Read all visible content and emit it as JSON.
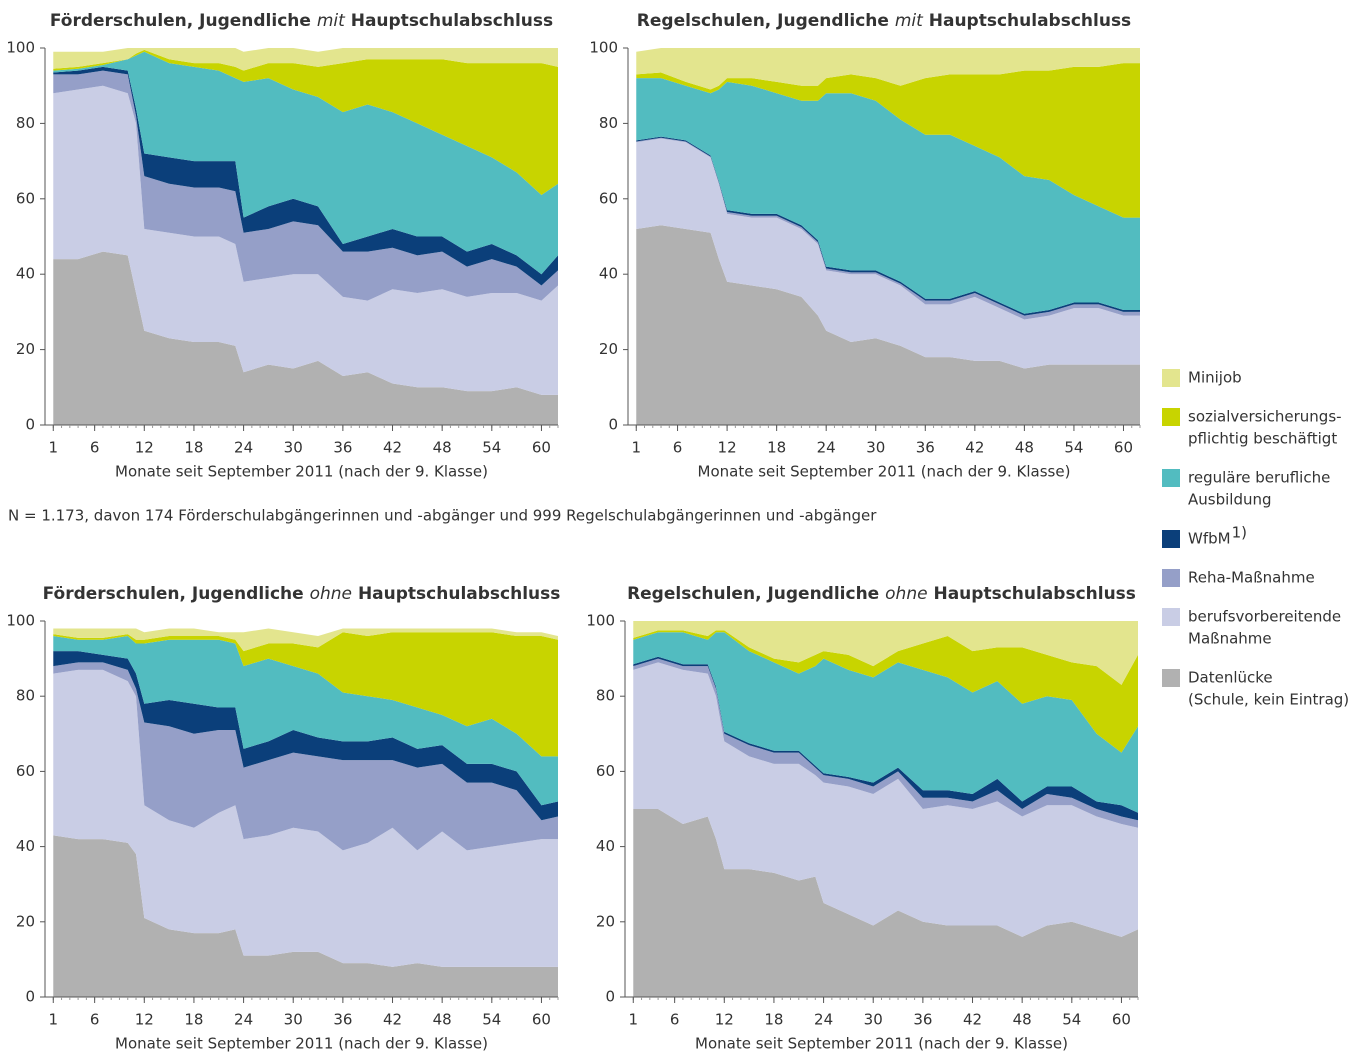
{
  "chart_data": [
    {
      "type": "area",
      "title": [
        "Förderschulen, Jugendliche ",
        "mit",
        " Hauptschulabschluss"
      ],
      "x_label": "Monate seit September 2011 (nach der 9. Klasse)",
      "x": [
        1,
        4,
        7,
        10,
        11,
        12,
        15,
        18,
        21,
        23,
        24,
        27,
        30,
        33,
        36,
        39,
        42,
        45,
        48,
        51,
        54,
        57,
        60,
        62
      ],
      "xlim": [
        0,
        62
      ],
      "xticks": [
        1,
        6,
        12,
        18,
        24,
        30,
        36,
        42,
        48,
        54,
        60
      ],
      "ylim": [
        0,
        100
      ],
      "yticks": [
        0,
        20,
        40,
        60,
        80,
        100
      ],
      "series": [
        {
          "values": [
            44,
            44,
            46,
            45,
            35,
            25,
            23,
            22,
            22,
            21,
            14,
            16,
            15,
            17,
            13,
            14,
            11,
            10,
            10,
            9,
            9,
            10,
            8,
            8
          ]
        },
        {
          "values": [
            44,
            45,
            44,
            43,
            45,
            27,
            28,
            28,
            28,
            27,
            24,
            23,
            25,
            23,
            21,
            19,
            25,
            25,
            26,
            25,
            26,
            25,
            25,
            29
          ]
        },
        {
          "values": [
            5,
            4,
            4,
            5,
            2,
            14,
            13,
            13,
            13,
            14,
            13,
            13,
            14,
            13,
            12,
            13,
            11,
            10,
            10,
            8,
            9,
            7,
            4,
            4
          ]
        },
        {
          "values": [
            0.5,
            1,
            1,
            1,
            2,
            6,
            7,
            7,
            7,
            8,
            4,
            6,
            6,
            5,
            2,
            4,
            5,
            5,
            4,
            4,
            4,
            3,
            3,
            4
          ]
        },
        {
          "values": [
            0.5,
            0.5,
            0.5,
            3,
            14,
            27,
            25,
            25,
            24,
            22,
            36,
            34,
            29,
            29,
            35,
            35,
            31,
            30,
            27,
            28,
            23,
            22,
            21,
            19
          ]
        },
        {
          "values": [
            0.5,
            0.5,
            0.5,
            0,
            0.5,
            0.5,
            1,
            1,
            2,
            3,
            3,
            4,
            7,
            8,
            13,
            12,
            14,
            17,
            20,
            22,
            25,
            29,
            35,
            31
          ]
        },
        {
          "values": [
            4.5,
            4,
            3,
            3,
            1.5,
            0.5,
            3,
            4,
            4,
            5,
            5,
            4,
            4,
            4,
            4,
            3,
            3,
            3,
            3,
            4,
            4,
            4,
            4,
            5
          ]
        }
      ]
    },
    {
      "type": "area",
      "title": [
        "Regelschulen, Jugendliche ",
        "mit",
        " Hauptschulabschluss"
      ],
      "x_label": "Monate seit September 2011 (nach der 9. Klasse)",
      "x": [
        1,
        4,
        7,
        10,
        11,
        12,
        15,
        18,
        21,
        23,
        24,
        27,
        30,
        33,
        36,
        39,
        42,
        45,
        48,
        51,
        54,
        57,
        60,
        62
      ],
      "xlim": [
        0,
        62
      ],
      "xticks": [
        1,
        6,
        12,
        18,
        24,
        30,
        36,
        42,
        48,
        54,
        60
      ],
      "ylim": [
        0,
        100
      ],
      "yticks": [
        0,
        20,
        40,
        60,
        80,
        100
      ],
      "series": [
        {
          "values": [
            52,
            53,
            52,
            51,
            44,
            38,
            37,
            36,
            34,
            29,
            25,
            22,
            23,
            21,
            18,
            18,
            17,
            17,
            15,
            16,
            16,
            16,
            16,
            16
          ]
        },
        {
          "values": [
            23,
            23,
            23,
            20,
            20,
            18,
            18,
            19,
            18,
            19,
            16,
            18,
            17,
            16,
            14,
            14,
            17,
            14,
            13,
            13,
            15,
            15,
            13,
            13
          ]
        },
        {
          "values": [
            0.2,
            0.2,
            0.2,
            0.2,
            0.3,
            0.5,
            0.5,
            0.5,
            0.5,
            0.5,
            0.5,
            0.5,
            0.5,
            0.5,
            1,
            1,
            1,
            1,
            1,
            1,
            1,
            1,
            1,
            1
          ]
        },
        {
          "values": [
            0.3,
            0.3,
            0.3,
            0.3,
            0.3,
            0.5,
            0.5,
            0.5,
            0.5,
            0.5,
            0.5,
            0.5,
            0.5,
            0.5,
            0.5,
            0.5,
            0.5,
            0.5,
            0.5,
            0.5,
            0.5,
            0.5,
            0.5,
            0.5
          ]
        },
        {
          "values": [
            16.5,
            15.5,
            14.5,
            16.5,
            24.4,
            34,
            34,
            32,
            33,
            37,
            46,
            47,
            45,
            43,
            43.5,
            43.5,
            38.5,
            38.5,
            36.5,
            34.5,
            28.5,
            25.5,
            24.5,
            24.5
          ]
        },
        {
          "values": [
            1,
            1.5,
            1,
            1,
            1,
            1,
            2,
            3,
            4,
            4,
            4,
            5,
            6,
            9,
            15,
            16,
            19,
            22,
            28,
            29,
            34,
            37,
            41,
            41
          ]
        },
        {
          "values": [
            6,
            6.5,
            9,
            11,
            10,
            8,
            8,
            9,
            10,
            10,
            8,
            7,
            8,
            10,
            8,
            7,
            7,
            7,
            6,
            6,
            5,
            5,
            4,
            4
          ]
        }
      ]
    },
    {
      "type": "area",
      "title": [
        "Förderschulen, Jugendliche ",
        "ohne",
        " Hauptschulabschluss"
      ],
      "x_label": "Monate seit September 2011 (nach der 9. Klasse)",
      "x": [
        1,
        4,
        7,
        10,
        11,
        12,
        15,
        18,
        21,
        23,
        24,
        27,
        30,
        33,
        36,
        39,
        42,
        45,
        48,
        51,
        54,
        57,
        60,
        62
      ],
      "xlim": [
        0,
        62
      ],
      "xticks": [
        1,
        6,
        12,
        18,
        24,
        30,
        36,
        42,
        48,
        54,
        60
      ],
      "ylim": [
        0,
        100
      ],
      "yticks": [
        0,
        20,
        40,
        60,
        80,
        100
      ],
      "series": [
        {
          "values": [
            43,
            42,
            42,
            41,
            38,
            21,
            18,
            17,
            17,
            18,
            11,
            11,
            12,
            12,
            9,
            9,
            8,
            9,
            8,
            8,
            8,
            8,
            8,
            8
          ]
        },
        {
          "values": [
            43,
            45,
            45,
            43,
            42,
            30,
            29,
            28,
            32,
            33,
            31,
            32,
            33,
            32,
            30,
            32,
            37,
            30,
            36,
            31,
            32,
            33,
            34,
            34
          ]
        },
        {
          "values": [
            2,
            2,
            2,
            3,
            2,
            22,
            25,
            25,
            22,
            20,
            19,
            20,
            20,
            20,
            24,
            22,
            18,
            22,
            18,
            18,
            17,
            14,
            5,
            6
          ]
        },
        {
          "values": [
            4,
            3,
            2,
            3,
            4,
            5,
            7,
            8,
            6,
            6,
            5,
            5,
            6,
            5,
            5,
            5,
            6,
            5,
            5,
            5,
            5,
            5,
            4,
            4
          ]
        },
        {
          "values": [
            4,
            3,
            4,
            6,
            8,
            16,
            16,
            17,
            18,
            17,
            22,
            22,
            17,
            17,
            13,
            12,
            10,
            11,
            8,
            10,
            12,
            10,
            13,
            12
          ]
        },
        {
          "values": [
            0.5,
            0.5,
            0.5,
            0.5,
            1,
            1,
            1,
            1,
            1,
            1,
            4,
            4,
            6,
            7,
            16,
            16,
            18,
            20,
            22,
            25,
            23,
            26,
            32,
            31
          ]
        },
        {
          "values": [
            1.5,
            2.5,
            2.5,
            1.5,
            3,
            2,
            2,
            2,
            1,
            2,
            5,
            4,
            3,
            3,
            1,
            2,
            1,
            1,
            1,
            1,
            1,
            1,
            1,
            1
          ]
        }
      ]
    },
    {
      "type": "area",
      "title": [
        "Regelschulen, Jugendliche ",
        "ohne",
        " Hauptschulabschluss"
      ],
      "x_label": "Monate seit September 2011 (nach der 9. Klasse)",
      "x": [
        1,
        4,
        7,
        10,
        11,
        12,
        15,
        18,
        21,
        23,
        24,
        27,
        30,
        33,
        36,
        39,
        42,
        45,
        48,
        51,
        54,
        57,
        60,
        62
      ],
      "xlim": [
        0,
        62
      ],
      "xticks": [
        1,
        6,
        12,
        18,
        24,
        30,
        36,
        42,
        48,
        54,
        60
      ],
      "ylim": [
        0,
        100
      ],
      "yticks": [
        0,
        20,
        40,
        60,
        80,
        100
      ],
      "series": [
        {
          "values": [
            50,
            50,
            46,
            48,
            42,
            34,
            34,
            33,
            31,
            32,
            25,
            22,
            19,
            23,
            20,
            19,
            19,
            19,
            16,
            19,
            20,
            18,
            16,
            18
          ]
        },
        {
          "values": [
            37,
            39,
            41,
            38,
            38,
            34,
            30,
            29,
            31,
            27,
            32,
            34,
            35,
            35,
            30,
            32,
            31,
            33,
            32,
            32,
            31,
            30,
            30,
            27
          ]
        },
        {
          "values": [
            1,
            1,
            1,
            2,
            2,
            2,
            3,
            3,
            3,
            2,
            2,
            2,
            2,
            2,
            3,
            2,
            2,
            3,
            2,
            3,
            2,
            2,
            2,
            2
          ]
        },
        {
          "values": [
            0.5,
            0.5,
            0.5,
            0.5,
            0.5,
            0.5,
            0.5,
            0.5,
            0.5,
            0.5,
            0.5,
            0.5,
            1,
            1,
            2,
            2,
            2,
            3,
            2,
            2,
            3,
            2,
            3,
            2
          ]
        },
        {
          "values": [
            6.5,
            6.5,
            8.5,
            6.5,
            14.5,
            26.5,
            24.5,
            23.5,
            20.5,
            26.5,
            30.5,
            28.5,
            28,
            28,
            32,
            30,
            27,
            26,
            26,
            24,
            23,
            18,
            14,
            23
          ]
        },
        {
          "values": [
            0.5,
            0.5,
            0.5,
            1,
            0.5,
            0.5,
            1,
            1,
            3,
            3,
            2,
            4,
            3,
            3,
            7,
            11,
            11,
            9,
            15,
            11,
            10,
            18,
            18,
            19
          ]
        },
        {
          "values": [
            4.5,
            2.5,
            2.5,
            4,
            2.5,
            2.5,
            7,
            10,
            11,
            9,
            8,
            9,
            12,
            8,
            6,
            4,
            8,
            7,
            7,
            9,
            11,
            12,
            17,
            9
          ]
        }
      ]
    }
  ],
  "legend": [
    {
      "name": [
        "Datenlücke",
        "(Schule, kein Eintrag)"
      ],
      "color": "#b1b1b1"
    },
    {
      "name": [
        "berufsvorbereitende",
        "Maßnahme"
      ],
      "color": "#c9cde5"
    },
    {
      "name": [
        "Reha-Maßnahme"
      ],
      "color": "#959fc8"
    },
    {
      "name": [
        "WfbM"
      ],
      "note": "1)",
      "color": "#0b3f7a"
    },
    {
      "name": [
        "reguläre berufliche",
        "Ausbildung"
      ],
      "color": "#52bcc0"
    },
    {
      "name": [
        "sozialversicherungs-",
        "pflichtig beschäftigt"
      ],
      "color": "#c8d400"
    },
    {
      "name": [
        "Minijob"
      ],
      "color": "#e3e58e"
    }
  ],
  "note": "N = 1.173, davon 174 Förderschulabgängerinnen und -abgänger und 999 Regelschulabgängerinnen und -abgänger"
}
